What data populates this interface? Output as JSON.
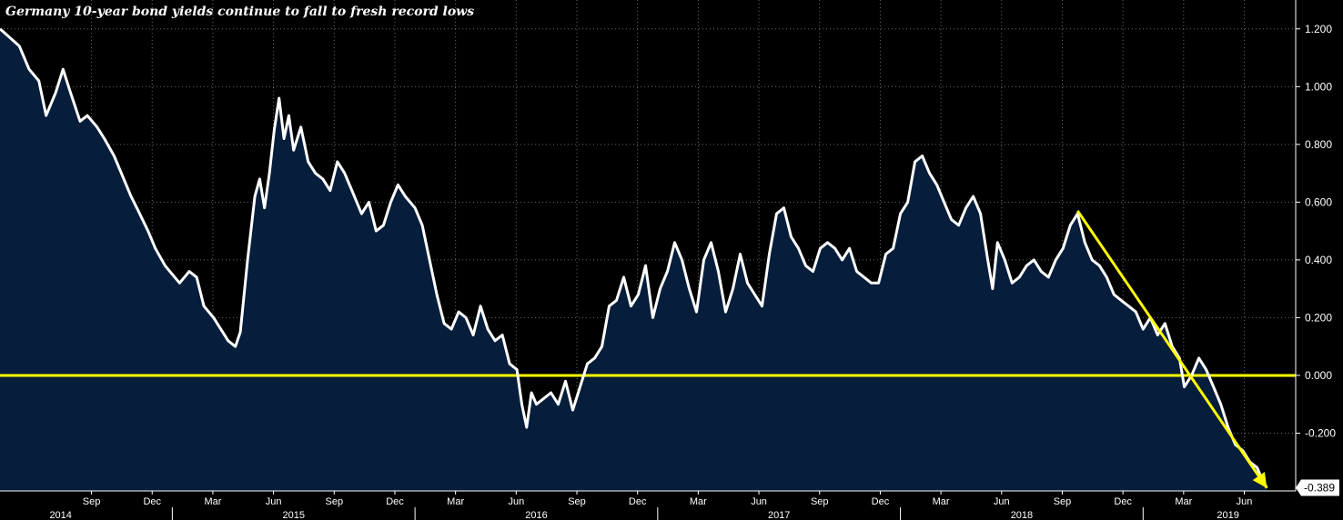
{
  "chart_data": {
    "type": "area",
    "title": "Germany 10-year bond yields continue to fall to fresh record lows",
    "ylabel": "",
    "xlabel": "",
    "ylim": [
      -0.4,
      1.3
    ],
    "yticks": [
      -0.2,
      0.0,
      0.2,
      0.4,
      0.6,
      0.8,
      1.0,
      1.2
    ],
    "ytick_labels": [
      "-0.200",
      "0.000",
      "0.200",
      "0.400",
      "0.600",
      "0.800",
      "1.000",
      "1.200"
    ],
    "x_range": [
      2014.29,
      2019.55
    ],
    "month_ticks": [
      {
        "label": "Sep",
        "t": 2014.667
      },
      {
        "label": "Dec",
        "t": 2014.917
      },
      {
        "label": "Mar",
        "t": 2015.167
      },
      {
        "label": "Jun",
        "t": 2015.417
      },
      {
        "label": "Sep",
        "t": 2015.667
      },
      {
        "label": "Dec",
        "t": 2015.917
      },
      {
        "label": "Mar",
        "t": 2016.167
      },
      {
        "label": "Jun",
        "t": 2016.417
      },
      {
        "label": "Sep",
        "t": 2016.667
      },
      {
        "label": "Dec",
        "t": 2016.917
      },
      {
        "label": "Mar",
        "t": 2017.167
      },
      {
        "label": "Jun",
        "t": 2017.417
      },
      {
        "label": "Sep",
        "t": 2017.667
      },
      {
        "label": "Dec",
        "t": 2017.917
      },
      {
        "label": "Mar",
        "t": 2018.167
      },
      {
        "label": "Jun",
        "t": 2018.417
      },
      {
        "label": "Sep",
        "t": 2018.667
      },
      {
        "label": "Dec",
        "t": 2018.917
      },
      {
        "label": "Mar",
        "t": 2019.167
      },
      {
        "label": "Jun",
        "t": 2019.417
      }
    ],
    "year_labels": [
      {
        "label": "2014",
        "t": 2014.54
      },
      {
        "label": "2015",
        "t": 2015.5
      },
      {
        "label": "2016",
        "t": 2016.5
      },
      {
        "label": "2017",
        "t": 2017.5
      },
      {
        "label": "2018",
        "t": 2018.5
      },
      {
        "label": "2019",
        "t": 2019.35
      }
    ],
    "year_dividers": [
      2015.0,
      2016.0,
      2017.0,
      2018.0,
      2019.0
    ],
    "zero_line": 0.0,
    "last_value": -0.389,
    "last_value_label": "-0.389",
    "trend_arrow": {
      "from": {
        "t": 2018.73,
        "y": 0.57
      },
      "to": {
        "t": 2019.51,
        "y": -0.39
      }
    },
    "series": [
      {
        "name": "Germany 10-year bond yield",
        "points": [
          [
            2014.29,
            1.2
          ],
          [
            2014.33,
            1.17
          ],
          [
            2014.37,
            1.14
          ],
          [
            2014.41,
            1.06
          ],
          [
            2014.45,
            1.02
          ],
          [
            2014.48,
            0.9
          ],
          [
            2014.52,
            0.98
          ],
          [
            2014.55,
            1.06
          ],
          [
            2014.58,
            0.98
          ],
          [
            2014.62,
            0.88
          ],
          [
            2014.65,
            0.9
          ],
          [
            2014.69,
            0.86
          ],
          [
            2014.72,
            0.82
          ],
          [
            2014.76,
            0.76
          ],
          [
            2014.79,
            0.7
          ],
          [
            2014.83,
            0.62
          ],
          [
            2014.86,
            0.57
          ],
          [
            2014.9,
            0.5
          ],
          [
            2014.93,
            0.44
          ],
          [
            2014.97,
            0.38
          ],
          [
            2015.0,
            0.35
          ],
          [
            2015.03,
            0.32
          ],
          [
            2015.07,
            0.36
          ],
          [
            2015.1,
            0.34
          ],
          [
            2015.13,
            0.24
          ],
          [
            2015.17,
            0.2
          ],
          [
            2015.2,
            0.16
          ],
          [
            2015.23,
            0.12
          ],
          [
            2015.26,
            0.1
          ],
          [
            2015.28,
            0.15
          ],
          [
            2015.31,
            0.4
          ],
          [
            2015.34,
            0.62
          ],
          [
            2015.36,
            0.68
          ],
          [
            2015.38,
            0.58
          ],
          [
            2015.4,
            0.7
          ],
          [
            2015.42,
            0.85
          ],
          [
            2015.44,
            0.96
          ],
          [
            2015.46,
            0.82
          ],
          [
            2015.48,
            0.9
          ],
          [
            2015.5,
            0.78
          ],
          [
            2015.53,
            0.86
          ],
          [
            2015.56,
            0.74
          ],
          [
            2015.59,
            0.7
          ],
          [
            2015.62,
            0.68
          ],
          [
            2015.65,
            0.64
          ],
          [
            2015.68,
            0.74
          ],
          [
            2015.71,
            0.7
          ],
          [
            2015.74,
            0.64
          ],
          [
            2015.78,
            0.56
          ],
          [
            2015.81,
            0.6
          ],
          [
            2015.84,
            0.5
          ],
          [
            2015.87,
            0.52
          ],
          [
            2015.9,
            0.6
          ],
          [
            2015.93,
            0.66
          ],
          [
            2015.96,
            0.62
          ],
          [
            2016.0,
            0.58
          ],
          [
            2016.03,
            0.52
          ],
          [
            2016.06,
            0.4
          ],
          [
            2016.09,
            0.28
          ],
          [
            2016.12,
            0.18
          ],
          [
            2016.15,
            0.16
          ],
          [
            2016.18,
            0.22
          ],
          [
            2016.21,
            0.2
          ],
          [
            2016.24,
            0.14
          ],
          [
            2016.27,
            0.24
          ],
          [
            2016.3,
            0.16
          ],
          [
            2016.33,
            0.12
          ],
          [
            2016.36,
            0.14
          ],
          [
            2016.39,
            0.04
          ],
          [
            2016.42,
            0.02
          ],
          [
            2016.44,
            -0.1
          ],
          [
            2016.46,
            -0.18
          ],
          [
            2016.48,
            -0.06
          ],
          [
            2016.5,
            -0.1
          ],
          [
            2016.53,
            -0.08
          ],
          [
            2016.56,
            -0.06
          ],
          [
            2016.59,
            -0.1
          ],
          [
            2016.62,
            -0.02
          ],
          [
            2016.65,
            -0.12
          ],
          [
            2016.68,
            -0.04
          ],
          [
            2016.71,
            0.04
          ],
          [
            2016.74,
            0.06
          ],
          [
            2016.77,
            0.1
          ],
          [
            2016.8,
            0.24
          ],
          [
            2016.83,
            0.26
          ],
          [
            2016.86,
            0.34
          ],
          [
            2016.89,
            0.24
          ],
          [
            2016.92,
            0.28
          ],
          [
            2016.95,
            0.38
          ],
          [
            2016.98,
            0.2
          ],
          [
            2017.01,
            0.3
          ],
          [
            2017.04,
            0.36
          ],
          [
            2017.07,
            0.46
          ],
          [
            2017.1,
            0.4
          ],
          [
            2017.13,
            0.3
          ],
          [
            2017.16,
            0.22
          ],
          [
            2017.19,
            0.4
          ],
          [
            2017.22,
            0.46
          ],
          [
            2017.25,
            0.36
          ],
          [
            2017.28,
            0.22
          ],
          [
            2017.31,
            0.3
          ],
          [
            2017.34,
            0.42
          ],
          [
            2017.37,
            0.32
          ],
          [
            2017.4,
            0.28
          ],
          [
            2017.43,
            0.24
          ],
          [
            2017.46,
            0.42
          ],
          [
            2017.49,
            0.56
          ],
          [
            2017.52,
            0.58
          ],
          [
            2017.55,
            0.48
          ],
          [
            2017.58,
            0.44
          ],
          [
            2017.61,
            0.38
          ],
          [
            2017.64,
            0.36
          ],
          [
            2017.67,
            0.44
          ],
          [
            2017.7,
            0.46
          ],
          [
            2017.73,
            0.44
          ],
          [
            2017.76,
            0.4
          ],
          [
            2017.79,
            0.44
          ],
          [
            2017.82,
            0.36
          ],
          [
            2017.85,
            0.34
          ],
          [
            2017.88,
            0.32
          ],
          [
            2017.91,
            0.32
          ],
          [
            2017.94,
            0.42
          ],
          [
            2017.97,
            0.44
          ],
          [
            2018.0,
            0.56
          ],
          [
            2018.03,
            0.6
          ],
          [
            2018.06,
            0.74
          ],
          [
            2018.09,
            0.76
          ],
          [
            2018.12,
            0.7
          ],
          [
            2018.15,
            0.66
          ],
          [
            2018.18,
            0.6
          ],
          [
            2018.21,
            0.54
          ],
          [
            2018.24,
            0.52
          ],
          [
            2018.27,
            0.58
          ],
          [
            2018.3,
            0.62
          ],
          [
            2018.33,
            0.56
          ],
          [
            2018.36,
            0.4
          ],
          [
            2018.38,
            0.3
          ],
          [
            2018.4,
            0.46
          ],
          [
            2018.43,
            0.4
          ],
          [
            2018.46,
            0.32
          ],
          [
            2018.49,
            0.34
          ],
          [
            2018.52,
            0.38
          ],
          [
            2018.55,
            0.4
          ],
          [
            2018.58,
            0.36
          ],
          [
            2018.61,
            0.34
          ],
          [
            2018.64,
            0.4
          ],
          [
            2018.67,
            0.44
          ],
          [
            2018.7,
            0.52
          ],
          [
            2018.73,
            0.56
          ],
          [
            2018.76,
            0.46
          ],
          [
            2018.79,
            0.4
          ],
          [
            2018.82,
            0.38
          ],
          [
            2018.85,
            0.34
          ],
          [
            2018.88,
            0.28
          ],
          [
            2018.91,
            0.26
          ],
          [
            2018.94,
            0.24
          ],
          [
            2018.97,
            0.22
          ],
          [
            2019.0,
            0.16
          ],
          [
            2019.03,
            0.2
          ],
          [
            2019.06,
            0.14
          ],
          [
            2019.09,
            0.18
          ],
          [
            2019.12,
            0.1
          ],
          [
            2019.15,
            0.06
          ],
          [
            2019.17,
            -0.04
          ],
          [
            2019.2,
            0.0
          ],
          [
            2019.23,
            0.06
          ],
          [
            2019.26,
            0.02
          ],
          [
            2019.29,
            -0.04
          ],
          [
            2019.32,
            -0.1
          ],
          [
            2019.35,
            -0.18
          ],
          [
            2019.38,
            -0.24
          ],
          [
            2019.41,
            -0.26
          ],
          [
            2019.44,
            -0.3
          ],
          [
            2019.47,
            -0.32
          ],
          [
            2019.49,
            -0.36
          ],
          [
            2019.51,
            -0.389
          ]
        ]
      }
    ]
  }
}
